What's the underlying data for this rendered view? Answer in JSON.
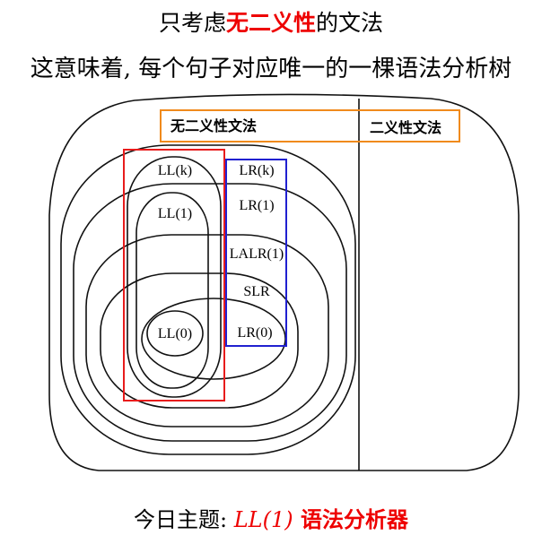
{
  "title": {
    "prefix": "只考虑",
    "highlight": "无二义性",
    "suffix": "的文法"
  },
  "subtitle": "这意味着, 每个句子对应唯一的一棵语法分析树",
  "diagram": {
    "unambiguous_label": "无二义性文法",
    "ambiguous_label": "二义性文法",
    "lr_labels": [
      "LR(k)",
      "LR(1)",
      "LALR(1)",
      "SLR",
      "LR(0)"
    ],
    "ll_labels": [
      "LL(k)",
      "LL(1)",
      "LL(0)"
    ],
    "colors": {
      "orange_box": "#f08a1c",
      "red_box": "#e81c1c",
      "blue_box": "#2020d0"
    }
  },
  "footer": {
    "prefix": "今日主题: ",
    "topic": "LL(1)",
    "suffix": " 语法分析器"
  }
}
